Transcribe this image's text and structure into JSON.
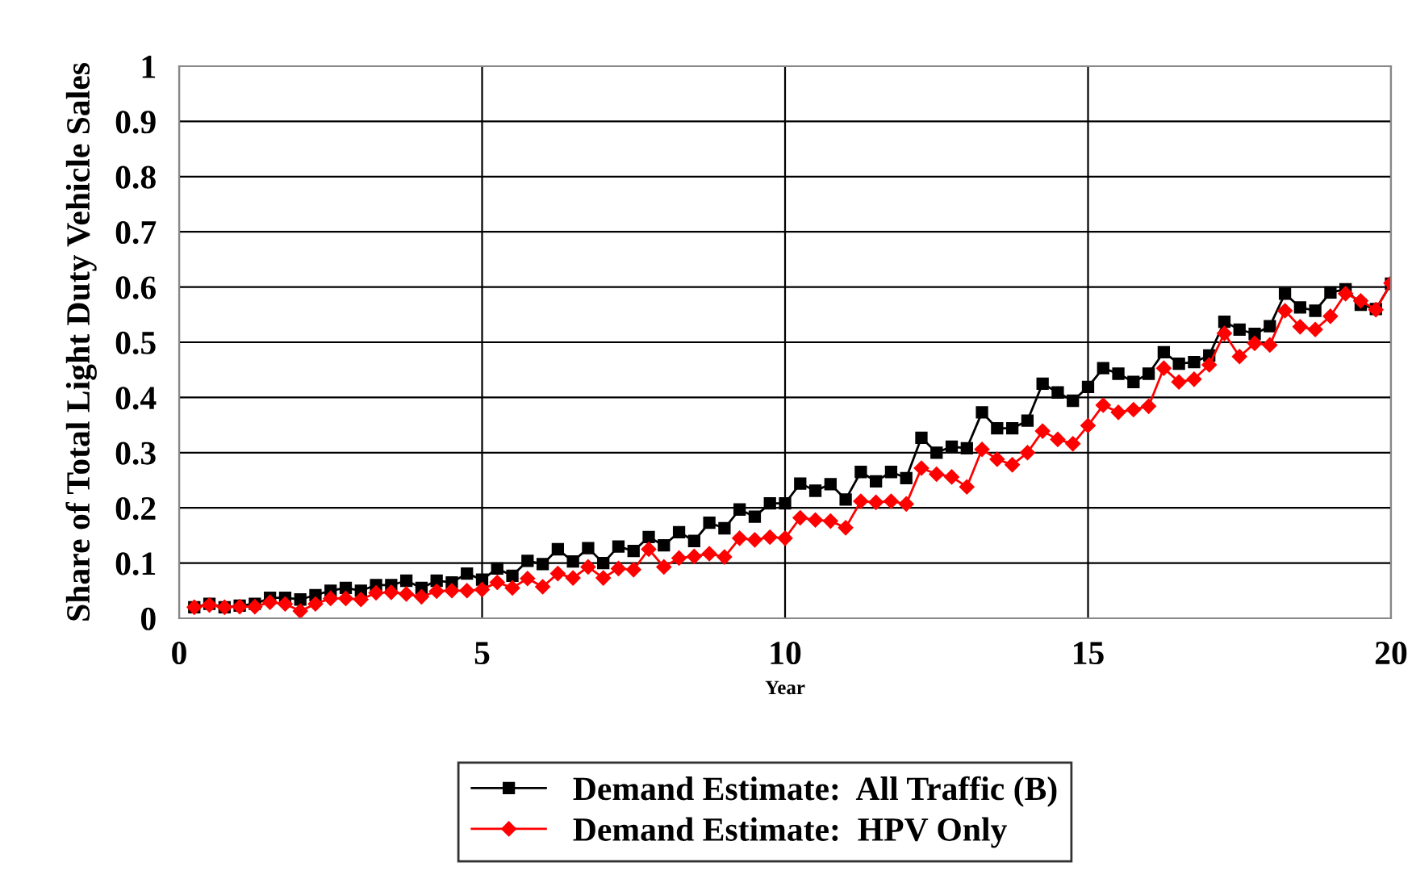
{
  "chart_data": {
    "type": "line",
    "xlabel": "Year",
    "ylabel": "Share of Total Light Duty Vehicle Sales",
    "x": [
      0.25,
      0.5,
      0.75,
      1,
      1.25,
      1.5,
      1.75,
      2,
      2.25,
      2.5,
      2.75,
      3,
      3.25,
      3.5,
      3.75,
      4,
      4.25,
      4.5,
      4.75,
      5,
      5.25,
      5.5,
      5.75,
      6,
      6.25,
      6.5,
      6.75,
      7,
      7.25,
      7.5,
      7.75,
      8,
      8.25,
      8.5,
      8.75,
      9,
      9.25,
      9.5,
      9.75,
      10,
      10.25,
      10.5,
      10.75,
      11,
      11.25,
      11.5,
      11.75,
      12,
      12.25,
      12.5,
      12.75,
      13,
      13.25,
      13.5,
      13.75,
      14,
      14.25,
      14.5,
      14.75,
      15,
      15.25,
      15.5,
      15.75,
      16,
      16.25,
      16.5,
      16.75,
      17,
      17.25,
      17.5,
      17.75,
      18,
      18.25,
      18.5,
      18.75,
      19,
      19.25,
      19.5,
      19.75,
      20
    ],
    "series": [
      {
        "name": "Demand Estimate:  All Traffic (B)",
        "color": "#000000",
        "marker": "square",
        "values": [
          0.02,
          0.026,
          0.02,
          0.023,
          0.026,
          0.037,
          0.037,
          0.034,
          0.042,
          0.05,
          0.055,
          0.05,
          0.06,
          0.06,
          0.068,
          0.055,
          0.068,
          0.065,
          0.081,
          0.07,
          0.09,
          0.077,
          0.104,
          0.098,
          0.125,
          0.103,
          0.127,
          0.1,
          0.13,
          0.122,
          0.147,
          0.132,
          0.156,
          0.14,
          0.173,
          0.163,
          0.197,
          0.184,
          0.208,
          0.208,
          0.244,
          0.231,
          0.243,
          0.215,
          0.265,
          0.248,
          0.265,
          0.254,
          0.327,
          0.3,
          0.311,
          0.308,
          0.373,
          0.344,
          0.344,
          0.358,
          0.425,
          0.409,
          0.394,
          0.419,
          0.453,
          0.443,
          0.428,
          0.443,
          0.482,
          0.461,
          0.464,
          0.476,
          0.537,
          0.523,
          0.515,
          0.529,
          0.588,
          0.563,
          0.557,
          0.59,
          0.596,
          0.568,
          0.56,
          0.606
        ]
      },
      {
        "name": "Demand Estimate:  HPV Only",
        "color": "#ff0000",
        "marker": "diamond",
        "values": [
          0.02,
          0.024,
          0.02,
          0.021,
          0.021,
          0.029,
          0.026,
          0.013,
          0.026,
          0.036,
          0.036,
          0.034,
          0.046,
          0.047,
          0.044,
          0.039,
          0.049,
          0.05,
          0.05,
          0.052,
          0.065,
          0.055,
          0.072,
          0.057,
          0.081,
          0.073,
          0.093,
          0.073,
          0.09,
          0.088,
          0.125,
          0.093,
          0.109,
          0.112,
          0.117,
          0.111,
          0.145,
          0.142,
          0.147,
          0.145,
          0.182,
          0.178,
          0.176,
          0.164,
          0.212,
          0.21,
          0.212,
          0.207,
          0.272,
          0.261,
          0.256,
          0.238,
          0.306,
          0.288,
          0.278,
          0.3,
          0.339,
          0.324,
          0.316,
          0.349,
          0.386,
          0.373,
          0.378,
          0.384,
          0.453,
          0.428,
          0.433,
          0.459,
          0.516,
          0.474,
          0.498,
          0.495,
          0.557,
          0.528,
          0.523,
          0.547,
          0.588,
          0.575,
          0.559,
          0.607
        ]
      }
    ],
    "xlim": [
      0,
      20
    ],
    "xticks": [
      0,
      5,
      10,
      15,
      20
    ],
    "ylim": [
      0,
      1
    ],
    "yticks": [
      0,
      0.1,
      0.2,
      0.3,
      0.4,
      0.5,
      0.6,
      0.7,
      0.8,
      0.9,
      1
    ],
    "grid": true,
    "legend": "bottom",
    "line_style": "solid"
  }
}
